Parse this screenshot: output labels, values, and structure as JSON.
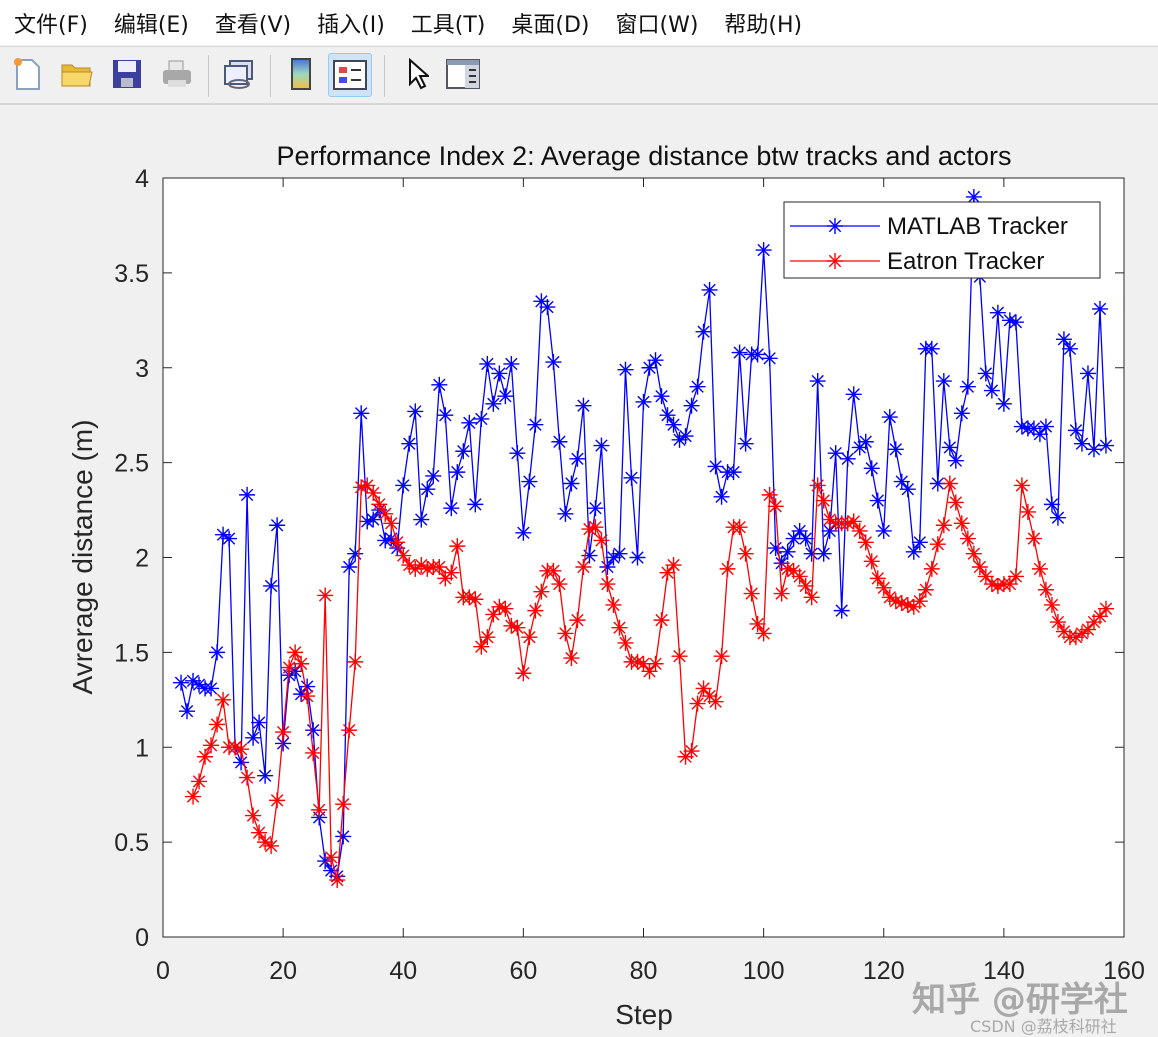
{
  "menu": [
    "文件(F)",
    "编辑(E)",
    "查看(V)",
    "插入(I)",
    "工具(T)",
    "桌面(D)",
    "窗口(W)",
    "帮助(H)"
  ],
  "toolbar": {
    "icons": [
      "new-figure-icon",
      "open-file-icon",
      "save-icon",
      "print-icon",
      "link-plot-icon",
      "insert-colorbar-icon",
      "insert-legend-icon",
      "edit-plot-pointer-icon",
      "property-inspector-icon"
    ],
    "active": "insert-legend-icon"
  },
  "watermarks": {
    "zhihu": "知乎 @研学社",
    "csdn": "CSDN @荔枝科研社"
  },
  "chart_data": {
    "type": "line",
    "title": "Performance Index 2: Average distance btw tracks and actors",
    "xlabel": "Step",
    "ylabel": "Avrerage distance (m)",
    "xlim": [
      0,
      160
    ],
    "ylim": [
      0,
      4
    ],
    "xticks": [
      "0",
      "20",
      "40",
      "60",
      "80",
      "100",
      "120",
      "140",
      "160"
    ],
    "yticks": [
      "0",
      "0.5",
      "1",
      "1.5",
      "2",
      "2.5",
      "3",
      "3.5",
      "4"
    ],
    "grid": false,
    "legend_position": "top-right",
    "series": [
      {
        "name": "MATLAB Tracker",
        "color": "#0000ff",
        "marker": "asterisk",
        "x_start": 3,
        "values": [
          1.34,
          1.19,
          1.35,
          1.33,
          1.31,
          1.31,
          1.5,
          2.12,
          2.1,
          1.0,
          0.92,
          2.33,
          1.05,
          1.13,
          0.85,
          1.85,
          2.17,
          1.02,
          1.38,
          1.4,
          1.28,
          1.32,
          1.09,
          0.63,
          0.4,
          0.35,
          0.32,
          0.53,
          1.95,
          2.02,
          2.76,
          2.19,
          2.2,
          2.25,
          2.09,
          2.1,
          2.05,
          2.38,
          2.6,
          2.77,
          2.2,
          2.36,
          2.43,
          2.91,
          2.75,
          2.26,
          2.45,
          2.56,
          2.71,
          2.28,
          2.73,
          3.02,
          2.81,
          2.97,
          2.85,
          3.02,
          2.55,
          2.13,
          2.4,
          2.7,
          3.35,
          3.32,
          3.03,
          2.61,
          2.23,
          2.39,
          2.52,
          2.8,
          2.01,
          2.26,
          2.59,
          1.95,
          2.0,
          2.02,
          2.99,
          2.42,
          2.0,
          2.82,
          3.0,
          3.04,
          2.85,
          2.75,
          2.7,
          2.62,
          2.64,
          2.8,
          2.9,
          3.19,
          3.41,
          2.48,
          2.32,
          2.45,
          2.45,
          3.08,
          2.6,
          3.07,
          3.07,
          3.62,
          3.05,
          2.05,
          1.97,
          2.03,
          2.1,
          2.14,
          2.1,
          2.02,
          2.93,
          2.02,
          2.14,
          2.55,
          1.72,
          2.52,
          2.86,
          2.58,
          2.61,
          2.47,
          2.3,
          2.14,
          2.74,
          2.57,
          2.4,
          2.36,
          2.03,
          2.08,
          3.1,
          3.1,
          2.39,
          2.93,
          2.58,
          2.51,
          2.76,
          2.9,
          3.9,
          3.48,
          2.97,
          2.88,
          3.29,
          2.81,
          3.25,
          3.24,
          2.69,
          2.68,
          2.68,
          2.65,
          2.69,
          2.28,
          2.21,
          3.15,
          3.1,
          2.67,
          2.6,
          2.97,
          2.57,
          3.31,
          2.59
        ]
      },
      {
        "name": "Eatron Tracker",
        "color": "#ff0000",
        "marker": "asterisk",
        "x_start": 5,
        "values": [
          0.74,
          0.82,
          0.95,
          1.01,
          1.12,
          1.25,
          1.0,
          1.0,
          0.99,
          0.84,
          0.64,
          0.55,
          0.5,
          0.48,
          0.72,
          1.08,
          1.42,
          1.5,
          1.44,
          1.27,
          0.97,
          0.67,
          1.8,
          0.42,
          0.3,
          0.7,
          1.09,
          1.45,
          2.37,
          2.38,
          2.34,
          2.28,
          2.23,
          2.18,
          2.08,
          2.01,
          1.96,
          1.94,
          1.96,
          1.94,
          1.95,
          1.95,
          1.89,
          1.92,
          2.06,
          1.79,
          1.79,
          1.78,
          1.53,
          1.58,
          1.7,
          1.74,
          1.73,
          1.64,
          1.63,
          1.39,
          1.58,
          1.72,
          1.82,
          1.93,
          1.93,
          1.86,
          1.6,
          1.47,
          1.67,
          1.95,
          2.15,
          2.16,
          2.09,
          1.86,
          1.75,
          1.63,
          1.55,
          1.45,
          1.45,
          1.44,
          1.4,
          1.44,
          1.67,
          1.92,
          1.96,
          1.48,
          0.95,
          0.98,
          1.23,
          1.31,
          1.27,
          1.24,
          1.48,
          1.94,
          2.16,
          2.16,
          2.02,
          1.81,
          1.65,
          1.6,
          2.33,
          2.27,
          1.81,
          1.94,
          1.93,
          1.9,
          1.85,
          1.79,
          2.38,
          2.3,
          2.2,
          2.18,
          2.18,
          2.18,
          2.19,
          2.14,
          2.08,
          1.98,
          1.89,
          1.84,
          1.79,
          1.77,
          1.76,
          1.75,
          1.74,
          1.77,
          1.83,
          1.94,
          2.07,
          2.17,
          2.39,
          2.29,
          2.18,
          2.1,
          2.02,
          1.95,
          1.9,
          1.86,
          1.85,
          1.86,
          1.86,
          1.9,
          2.38,
          2.24,
          2.1,
          1.94,
          1.83,
          1.75,
          1.66,
          1.61,
          1.58,
          1.58,
          1.6,
          1.62,
          1.66,
          1.69,
          1.73
        ]
      }
    ]
  }
}
